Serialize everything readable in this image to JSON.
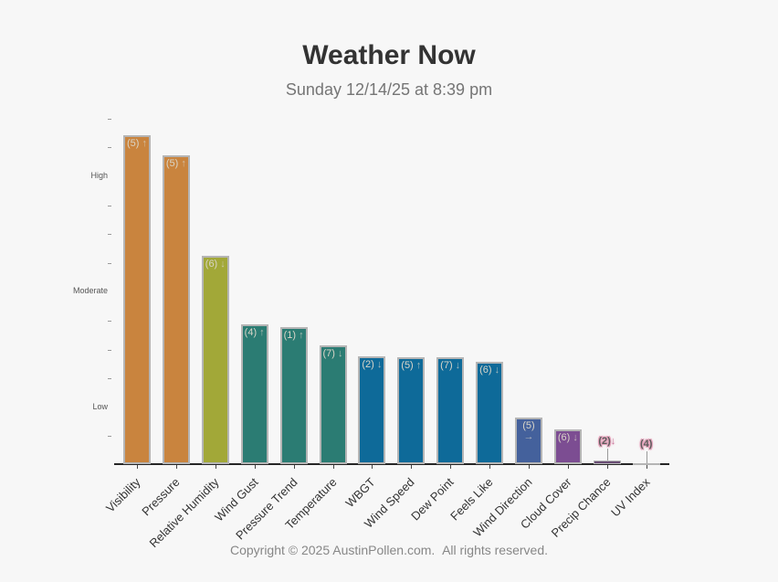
{
  "page": {
    "title": "Weather Now",
    "subtitle": "Sunday 12/14/25 at 8:39 pm",
    "footer": "Copyright © 2025 AustinPollen.com.  All rights reserved.",
    "background_color": "#f7f7f7"
  },
  "chart_data": {
    "type": "bar",
    "title": "Weather Now",
    "subtitle": "Sunday 12/14/25 at 8:39 pm",
    "xlabel": "",
    "ylabel": "",
    "ylim": [
      0,
      12.5
    ],
    "grid": false,
    "legend": false,
    "y_axis_labels": [
      {
        "text": "Low",
        "value": 2
      },
      {
        "text": "Moderate",
        "value": 6
      },
      {
        "text": "High",
        "value": 10
      }
    ],
    "y_ticks": [
      1,
      3,
      4,
      5,
      7,
      8,
      9,
      11,
      12
    ],
    "categories": [
      "Visibility",
      "Pressure",
      "Relative Humidity",
      "Wind Gust",
      "Pressure Trend",
      "Temperature",
      "WBGT",
      "Wind Speed",
      "Dew Point",
      "Feels Like",
      "Wind Direction",
      "Cloud Cover",
      "Precip Chance",
      "UV Index"
    ],
    "bars": [
      {
        "category": "Visibility",
        "value": 11.4,
        "rating": 5,
        "trend": "up",
        "label": "(5)",
        "arrow": "↑",
        "color": "#c9843e",
        "label_position": "inside"
      },
      {
        "category": "Pressure",
        "value": 10.7,
        "rating": 5,
        "trend": "up",
        "label": "(5)",
        "arrow": "↑",
        "color": "#c9843e",
        "label_position": "inside"
      },
      {
        "category": "Relative Humidity",
        "value": 7.2,
        "rating": 6,
        "trend": "down",
        "label": "(6)",
        "arrow": "↓",
        "color": "#a2a838",
        "label_position": "inside"
      },
      {
        "category": "Wind Gust",
        "value": 4.85,
        "rating": 4,
        "trend": "up",
        "label": "(4)",
        "arrow": "↑",
        "color": "#2b7c73",
        "label_position": "inside"
      },
      {
        "category": "Pressure Trend",
        "value": 4.75,
        "rating": 1,
        "trend": "up",
        "label": "(1)",
        "arrow": "↑",
        "color": "#2b7c73",
        "label_position": "inside"
      },
      {
        "category": "Temperature",
        "value": 4.1,
        "rating": 7,
        "trend": "down",
        "label": "(7)",
        "arrow": "↓",
        "color": "#2b7c73",
        "label_position": "inside"
      },
      {
        "category": "WBGT",
        "value": 3.75,
        "rating": 2,
        "trend": "down",
        "label": "(2)",
        "arrow": "↓",
        "color": "#0e6a99",
        "label_position": "inside"
      },
      {
        "category": "Wind Speed",
        "value": 3.7,
        "rating": 5,
        "trend": "up",
        "label": "(5)",
        "arrow": "↑",
        "color": "#0e6a99",
        "label_position": "inside"
      },
      {
        "category": "Dew Point",
        "value": 3.7,
        "rating": 7,
        "trend": "down",
        "label": "(7)",
        "arrow": "↓",
        "color": "#0e6a99",
        "label_position": "inside"
      },
      {
        "category": "Feels Like",
        "value": 3.55,
        "rating": 6,
        "trend": "down",
        "label": "(6)",
        "arrow": "↓",
        "color": "#0e6a99",
        "label_position": "inside"
      },
      {
        "category": "Wind Direction",
        "value": 1.6,
        "rating": 5,
        "trend": "right",
        "label": "(5)",
        "arrow": "→",
        "color": "#44619c",
        "label_position": "inside-stacked"
      },
      {
        "category": "Cloud Cover",
        "value": 1.2,
        "rating": 6,
        "trend": "down",
        "label": "(6)",
        "arrow": "↓",
        "color": "#7c4d92",
        "label_position": "inside"
      },
      {
        "category": "Precip Chance",
        "value": 0.12,
        "rating": 2,
        "trend": "down",
        "label": "(2)",
        "arrow": "↓",
        "color": "#6a4e75",
        "label_position": "above"
      },
      {
        "category": "UV Index",
        "value": 0.04,
        "rating": 4,
        "trend": "none",
        "label": "(4)",
        "arrow": "",
        "color": "#c5c1c9",
        "label_position": "above"
      }
    ]
  }
}
